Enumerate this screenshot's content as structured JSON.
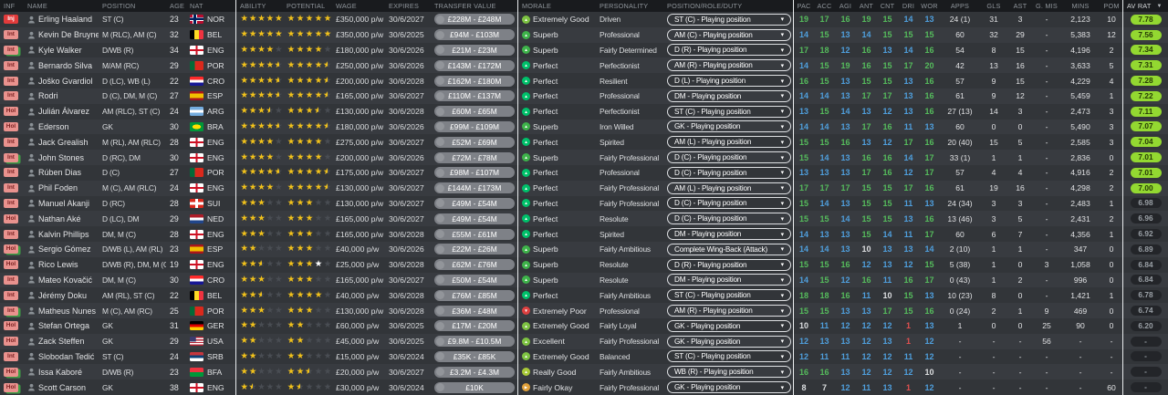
{
  "columns": [
    {
      "key": "inf",
      "label": "INF"
    },
    {
      "key": "name",
      "label": "NAME"
    },
    {
      "key": "position",
      "label": "POSITION"
    },
    {
      "key": "age",
      "label": "AGE"
    },
    {
      "key": "nat",
      "label": "NAT"
    },
    {
      "key": "ability",
      "label": "ABILITY"
    },
    {
      "key": "potential",
      "label": "POTENTIAL"
    },
    {
      "key": "wage",
      "label": "WAGE"
    },
    {
      "key": "expires",
      "label": "EXPIRES"
    },
    {
      "key": "value",
      "label": "TRANSFER VALUE"
    },
    {
      "key": "morale",
      "label": "MORALE"
    },
    {
      "key": "personality",
      "label": "PERSONALITY"
    },
    {
      "key": "role",
      "label": "POSITION/ROLE/DUTY"
    },
    {
      "key": "pac",
      "label": "PAC"
    },
    {
      "key": "acc",
      "label": "ACC"
    },
    {
      "key": "agi",
      "label": "AGI"
    },
    {
      "key": "ant",
      "label": "ANT"
    },
    {
      "key": "cnt",
      "label": "CNT"
    },
    {
      "key": "dri",
      "label": "DRI"
    },
    {
      "key": "wor",
      "label": "WOR"
    },
    {
      "key": "apps",
      "label": "APPS"
    },
    {
      "key": "gls",
      "label": "GLS"
    },
    {
      "key": "ast",
      "label": "AST"
    },
    {
      "key": "gmis",
      "label": "G. MIS"
    },
    {
      "key": "mins",
      "label": "MINS"
    },
    {
      "key": "pom",
      "label": "POM"
    },
    {
      "key": "avrat",
      "label": "AV RAT"
    }
  ],
  "sort": {
    "column": "AV RAT",
    "direction": "desc"
  },
  "colors": {
    "star_gold": "#f2c21b",
    "star_white": "#ffffff",
    "badge_injured": "#e23b3b",
    "badge_soft": "#e9928e",
    "badge_stack_green": "#3f9d46",
    "rating_good": "#93d831",
    "attr_green": "#55bb5c",
    "attr_blue": "#4f9fdd",
    "attr_white": "#dcdee0",
    "attr_red": "#e05050",
    "morale": {
      "Perfect": "#00c06a",
      "Superb": "#3eb24a",
      "Extremely Good": "#7dc242",
      "Excellent": "#7dc242",
      "Really Good": "#a8c838",
      "Fairly Okay": "#e0a03a",
      "Extremely Poor": "#dd4040"
    }
  },
  "players": [
    {
      "inf": "Inj",
      "inf_type": "inj",
      "inf_stacked": false,
      "name": "Erling Haaland",
      "position": "ST (C)",
      "age": "23",
      "nat": "NOR",
      "ability": 5,
      "potential": 5,
      "wage": "£350,000 p/w",
      "expires": "30/6/2027",
      "value": "£228M - £248M",
      "morale": "Extremely Good",
      "personality": "Driven",
      "role": "ST (C) - Playing position",
      "attrs": [
        19,
        17,
        16,
        19,
        15,
        14,
        13
      ],
      "apps": "24 (1)",
      "gls": "31",
      "ast": "3",
      "gmis": "-",
      "mins": "2,123",
      "pom": "10",
      "avrat": "7.78"
    },
    {
      "inf": "Int",
      "inf_type": "int",
      "inf_stacked": false,
      "name": "Kevin De Bruyne",
      "position": "M (RLC), AM (C)",
      "age": "32",
      "nat": "BEL",
      "ability": 5,
      "potential": 5,
      "wage": "£350,000 p/w",
      "expires": "30/6/2025",
      "value": "£94M - £103M",
      "morale": "Superb",
      "personality": "Professional",
      "role": "AM (C) - Playing position",
      "attrs": [
        14,
        15,
        13,
        14,
        15,
        15,
        15
      ],
      "apps": "60",
      "gls": "32",
      "ast": "29",
      "gmis": "-",
      "mins": "5,383",
      "pom": "12",
      "avrat": "7.56"
    },
    {
      "inf": "Int",
      "inf_type": "int",
      "inf_stacked": true,
      "name": "Kyle Walker",
      "position": "D/WB (R)",
      "age": "34",
      "nat": "ENG",
      "ability": 4,
      "potential": 4,
      "wage": "£180,000 p/w",
      "expires": "30/6/2026",
      "value": "£21M - £23M",
      "morale": "Superb",
      "personality": "Fairly Determined",
      "role": "D (R) - Playing position",
      "attrs": [
        17,
        18,
        12,
        16,
        13,
        14,
        16
      ],
      "apps": "54",
      "gls": "8",
      "ast": "15",
      "gmis": "-",
      "mins": "4,196",
      "pom": "2",
      "avrat": "7.34"
    },
    {
      "inf": "Int",
      "inf_type": "int",
      "inf_stacked": false,
      "name": "Bernardo Silva",
      "position": "M/AM (RC)",
      "age": "29",
      "nat": "POR",
      "ability": 4.5,
      "potential": 4.5,
      "wage": "£250,000 p/w",
      "expires": "30/6/2026",
      "value": "£143M - £172M",
      "morale": "Perfect",
      "personality": "Perfectionist",
      "role": "AM (R) - Playing position",
      "attrs": [
        14,
        15,
        19,
        16,
        15,
        17,
        20
      ],
      "apps": "42",
      "gls": "13",
      "ast": "16",
      "gmis": "-",
      "mins": "3,633",
      "pom": "5",
      "avrat": "7.31"
    },
    {
      "inf": "Int",
      "inf_type": "int",
      "inf_stacked": false,
      "name": "Joško Gvardiol",
      "position": "D (LC), WB (L)",
      "age": "22",
      "nat": "CRO",
      "ability": 4.5,
      "potential": 4.5,
      "wage": "£200,000 p/w",
      "expires": "30/6/2028",
      "value": "£162M - £180M",
      "morale": "Perfect",
      "personality": "Resilient",
      "role": "D (L) - Playing position",
      "attrs": [
        16,
        15,
        13,
        15,
        15,
        13,
        16
      ],
      "apps": "57",
      "gls": "9",
      "ast": "15",
      "gmis": "-",
      "mins": "4,229",
      "pom": "4",
      "avrat": "7.28"
    },
    {
      "inf": "Int",
      "inf_type": "int",
      "inf_stacked": false,
      "name": "Rodri",
      "position": "D (C), DM, M (C)",
      "age": "27",
      "nat": "ESP",
      "ability": 4.5,
      "potential": 4.5,
      "wage": "£165,000 p/w",
      "expires": "30/6/2027",
      "value": "£110M - £137M",
      "morale": "Perfect",
      "personality": "Professional",
      "role": "DM - Playing position",
      "attrs": [
        14,
        14,
        13,
        17,
        17,
        13,
        16
      ],
      "apps": "61",
      "gls": "9",
      "ast": "12",
      "gmis": "-",
      "mins": "5,459",
      "pom": "1",
      "avrat": "7.22"
    },
    {
      "inf": "Hol",
      "inf_type": "hol",
      "inf_stacked": false,
      "name": "Julián Álvarez",
      "position": "AM (RLC), ST (C)",
      "age": "24",
      "nat": "ARG",
      "ability": 3.5,
      "potential": 3.5,
      "wage": "£130,000 p/w",
      "expires": "30/6/2028",
      "value": "£60M - £65M",
      "morale": "Perfect",
      "personality": "Perfectionist",
      "role": "ST (C) - Playing position",
      "attrs": [
        13,
        15,
        14,
        13,
        12,
        13,
        16
      ],
      "apps": "27 (13)",
      "gls": "14",
      "ast": "3",
      "gmis": "-",
      "mins": "2,473",
      "pom": "3",
      "avrat": "7.11"
    },
    {
      "inf": "Hol",
      "inf_type": "hol",
      "inf_stacked": false,
      "name": "Ederson",
      "position": "GK",
      "age": "30",
      "nat": "BRA",
      "ability": 4.5,
      "potential": 4.5,
      "wage": "£180,000 p/w",
      "expires": "30/6/2026",
      "value": "£99M - £109M",
      "morale": "Superb",
      "personality": "Iron Willed",
      "role": "GK - Playing position",
      "attrs": [
        14,
        14,
        13,
        17,
        16,
        11,
        13
      ],
      "apps": "60",
      "gls": "0",
      "ast": "0",
      "gmis": "-",
      "mins": "5,490",
      "pom": "3",
      "avrat": "7.07"
    },
    {
      "inf": "Int",
      "inf_type": "int",
      "inf_stacked": false,
      "name": "Jack Grealish",
      "position": "M (RL), AM (RLC)",
      "age": "28",
      "nat": "ENG",
      "ability": 4,
      "potential": 4,
      "wage": "£275,000 p/w",
      "expires": "30/6/2027",
      "value": "£52M - £69M",
      "morale": "Perfect",
      "personality": "Spirited",
      "role": "AM (L) - Playing position",
      "attrs": [
        15,
        15,
        16,
        13,
        12,
        17,
        16
      ],
      "apps": "20 (40)",
      "gls": "15",
      "ast": "5",
      "gmis": "-",
      "mins": "2,585",
      "pom": "3",
      "avrat": "7.04"
    },
    {
      "inf": "Int",
      "inf_type": "int",
      "inf_stacked": true,
      "name": "John Stones",
      "position": "D (RC), DM",
      "age": "30",
      "nat": "ENG",
      "ability": 4,
      "potential": 4,
      "wage": "£200,000 p/w",
      "expires": "30/6/2026",
      "value": "£72M - £78M",
      "morale": "Superb",
      "personality": "Fairly Professional",
      "role": "D (C) - Playing position",
      "attrs": [
        15,
        14,
        13,
        16,
        16,
        14,
        17
      ],
      "apps": "33 (1)",
      "gls": "1",
      "ast": "1",
      "gmis": "-",
      "mins": "2,836",
      "pom": "0",
      "avrat": "7.01"
    },
    {
      "inf": "Int",
      "inf_type": "int",
      "inf_stacked": false,
      "name": "Rúben Dias",
      "position": "D (C)",
      "age": "27",
      "nat": "POR",
      "ability": 4.5,
      "potential": 4.5,
      "wage": "£175,000 p/w",
      "expires": "30/6/2027",
      "value": "£98M - £107M",
      "morale": "Perfect",
      "personality": "Professional",
      "role": "D (C) - Playing position",
      "attrs": [
        13,
        13,
        13,
        17,
        16,
        12,
        17
      ],
      "apps": "57",
      "gls": "4",
      "ast": "4",
      "gmis": "-",
      "mins": "4,916",
      "pom": "2",
      "avrat": "7.01"
    },
    {
      "inf": "Int",
      "inf_type": "int",
      "inf_stacked": false,
      "name": "Phil Foden",
      "position": "M (C), AM (RLC)",
      "age": "24",
      "nat": "ENG",
      "ability": 4,
      "potential": 4.5,
      "wage": "£130,000 p/w",
      "expires": "30/6/2027",
      "value": "£144M - £173M",
      "morale": "Perfect",
      "personality": "Fairly Professional",
      "role": "AM (L) - Playing position",
      "attrs": [
        17,
        17,
        17,
        15,
        15,
        17,
        16
      ],
      "apps": "61",
      "gls": "19",
      "ast": "16",
      "gmis": "-",
      "mins": "4,298",
      "pom": "2",
      "avrat": "7.00"
    },
    {
      "inf": "Int",
      "inf_type": "int",
      "inf_stacked": false,
      "name": "Manuel Akanji",
      "position": "D (RC)",
      "age": "28",
      "nat": "SUI",
      "ability": 3,
      "potential": 3,
      "wage": "£130,000 p/w",
      "expires": "30/6/2027",
      "value": "£49M - £54M",
      "morale": "Perfect",
      "personality": "Fairly Professional",
      "role": "D (C) - Playing position",
      "attrs": [
        15,
        14,
        13,
        15,
        15,
        11,
        13
      ],
      "apps": "24 (34)",
      "gls": "3",
      "ast": "3",
      "gmis": "-",
      "mins": "2,483",
      "pom": "1",
      "avrat": "6.98"
    },
    {
      "inf": "Hol",
      "inf_type": "hol",
      "inf_stacked": false,
      "name": "Nathan Aké",
      "position": "D (LC), DM",
      "age": "29",
      "nat": "NED",
      "ability": 3,
      "potential": 3,
      "wage": "£165,000 p/w",
      "expires": "30/6/2027",
      "value": "£49M - £54M",
      "morale": "Perfect",
      "personality": "Resolute",
      "role": "D (C) - Playing position",
      "attrs": [
        15,
        15,
        14,
        15,
        15,
        13,
        16
      ],
      "apps": "13 (46)",
      "gls": "3",
      "ast": "5",
      "gmis": "-",
      "mins": "2,431",
      "pom": "2",
      "avrat": "6.96"
    },
    {
      "inf": "Int",
      "inf_type": "int",
      "inf_stacked": false,
      "name": "Kalvin Phillips",
      "position": "DM, M (C)",
      "age": "28",
      "nat": "ENG",
      "ability": 3,
      "potential": 3,
      "wage": "£165,000 p/w",
      "expires": "30/6/2028",
      "value": "£55M - £61M",
      "morale": "Perfect",
      "personality": "Spirited",
      "role": "DM - Playing position",
      "attrs": [
        14,
        13,
        13,
        15,
        14,
        11,
        17
      ],
      "apps": "60",
      "gls": "6",
      "ast": "7",
      "gmis": "-",
      "mins": "4,356",
      "pom": "1",
      "avrat": "6.92"
    },
    {
      "inf": "Hol",
      "inf_type": "hol",
      "inf_stacked": true,
      "name": "Sergio Gómez",
      "position": "D/WB (L), AM (RL)",
      "age": "23",
      "nat": "ESP",
      "ability": 2,
      "potential": 3,
      "wage": "£40,000 p/w",
      "expires": "30/6/2026",
      "value": "£22M - £26M",
      "morale": "Superb",
      "personality": "Fairly Ambitious",
      "role": "Complete Wing-Back (Attack)",
      "attrs": [
        14,
        14,
        13,
        10,
        13,
        13,
        14
      ],
      "apps": "2 (10)",
      "gls": "1",
      "ast": "1",
      "gmis": "-",
      "mins": "347",
      "pom": "0",
      "avrat": "6.89"
    },
    {
      "inf": "Hol",
      "inf_type": "hol",
      "inf_stacked": false,
      "name": "Rico Lewis",
      "position": "D/WB (R), DM, M (C)",
      "age": "19",
      "nat": "ENG",
      "ability": 2.5,
      "potential": 4,
      "potential_white": true,
      "wage": "£25,000 p/w",
      "expires": "30/6/2028",
      "value": "£62M - £76M",
      "morale": "Superb",
      "personality": "Resolute",
      "role": "D (R) - Playing position",
      "attrs": [
        15,
        15,
        16,
        12,
        13,
        12,
        15
      ],
      "apps": "5 (38)",
      "gls": "1",
      "ast": "0",
      "gmis": "3",
      "mins": "1,058",
      "pom": "0",
      "avrat": "6.84"
    },
    {
      "inf": "Int",
      "inf_type": "int",
      "inf_stacked": false,
      "name": "Mateo Kovačić",
      "position": "DM, M (C)",
      "age": "30",
      "nat": "CRO",
      "ability": 3,
      "potential": 3,
      "wage": "£165,000 p/w",
      "expires": "30/6/2027",
      "value": "£50M - £54M",
      "morale": "Superb",
      "personality": "Resolute",
      "role": "DM - Playing position",
      "attrs": [
        14,
        15,
        12,
        16,
        11,
        16,
        17
      ],
      "apps": "0 (43)",
      "gls": "1",
      "ast": "2",
      "gmis": "-",
      "mins": "996",
      "pom": "0",
      "avrat": "6.84"
    },
    {
      "inf": "Int",
      "inf_type": "int",
      "inf_stacked": false,
      "name": "Jérémy Doku",
      "position": "AM (RL), ST (C)",
      "age": "22",
      "nat": "BEL",
      "ability": 2.5,
      "potential": 4,
      "wage": "£40,000 p/w",
      "expires": "30/6/2028",
      "value": "£76M - £85M",
      "morale": "Perfect",
      "personality": "Fairly Ambitious",
      "role": "ST (C) - Playing position",
      "attrs": [
        18,
        18,
        16,
        11,
        10,
        15,
        13
      ],
      "apps": "10 (23)",
      "gls": "8",
      "ast": "0",
      "gmis": "-",
      "mins": "1,421",
      "pom": "1",
      "avrat": "6.78"
    },
    {
      "inf": "Int",
      "inf_type": "int",
      "inf_stacked": true,
      "name": "Matheus Nunes",
      "position": "M (C), AM (RC)",
      "age": "25",
      "nat": "POR",
      "ability": 3,
      "potential": 3,
      "wage": "£130,000 p/w",
      "expires": "30/6/2028",
      "value": "£36M - £48M",
      "morale": "Extremely Poor",
      "personality": "Professional",
      "role": "AM (R) - Playing position",
      "attrs": [
        15,
        15,
        13,
        13,
        17,
        15,
        16
      ],
      "apps": "0 (24)",
      "gls": "2",
      "ast": "1",
      "gmis": "9",
      "mins": "469",
      "pom": "0",
      "avrat": "6.74"
    },
    {
      "inf": "Hol",
      "inf_type": "hol",
      "inf_stacked": false,
      "name": "Stefan Ortega",
      "position": "GK",
      "age": "31",
      "nat": "GER",
      "ability": 2,
      "potential": 2,
      "wage": "£60,000 p/w",
      "expires": "30/6/2025",
      "value": "£17M - £20M",
      "morale": "Extremely Good",
      "personality": "Fairly Loyal",
      "role": "GK - Playing position",
      "attrs": [
        10,
        11,
        12,
        12,
        12,
        1,
        13
      ],
      "apps": "1",
      "gls": "0",
      "ast": "0",
      "gmis": "25",
      "mins": "90",
      "pom": "0",
      "avrat": "6.20"
    },
    {
      "inf": "Hol",
      "inf_type": "hol",
      "inf_stacked": false,
      "name": "Zack Steffen",
      "position": "GK",
      "age": "29",
      "nat": "USA",
      "ability": 2,
      "potential": 2,
      "wage": "£45,000 p/w",
      "expires": "30/6/2025",
      "value": "£9.8M - £10.5M",
      "morale": "Excellent",
      "personality": "Fairly Professional",
      "role": "GK - Playing position",
      "attrs": [
        12,
        13,
        13,
        12,
        13,
        1,
        12
      ],
      "apps": "-",
      "gls": "-",
      "ast": "-",
      "gmis": "56",
      "mins": "-",
      "pom": "-",
      "avrat": "-"
    },
    {
      "inf": "Int",
      "inf_type": "int",
      "inf_stacked": false,
      "name": "Slobodan Tedić",
      "position": "ST (C)",
      "age": "24",
      "nat": "SRB",
      "ability": 2,
      "potential": 2,
      "wage": "£15,000 p/w",
      "expires": "30/6/2024",
      "value": "£35K - £85K",
      "morale": "Extremely Good",
      "personality": "Balanced",
      "role": "ST (C) - Playing position",
      "attrs": [
        12,
        11,
        11,
        12,
        12,
        11,
        12
      ],
      "apps": "-",
      "gls": "-",
      "ast": "-",
      "gmis": "-",
      "mins": "-",
      "pom": "-",
      "avrat": "-"
    },
    {
      "inf": "Hol",
      "inf_type": "hol",
      "inf_stacked": true,
      "name": "Issa Kaboré",
      "position": "D/WB (R)",
      "age": "23",
      "nat": "BFA",
      "ability": 2,
      "potential": 2.5,
      "wage": "£20,000 p/w",
      "expires": "30/6/2027",
      "value": "£3.2M - £4.3M",
      "morale": "Really Good",
      "personality": "Fairly Ambitious",
      "role": "WB (R) - Playing position",
      "attrs": [
        16,
        16,
        13,
        12,
        12,
        12,
        10
      ],
      "apps": "-",
      "gls": "-",
      "ast": "-",
      "gmis": "-",
      "mins": "-",
      "pom": "-",
      "avrat": "-"
    },
    {
      "inf": "Hol",
      "inf_type": "hol",
      "inf_stacked": true,
      "name": "Scott Carson",
      "position": "GK",
      "age": "38",
      "nat": "ENG",
      "ability": 1.5,
      "potential": 1.5,
      "wage": "£30,000 p/w",
      "expires": "30/6/2024",
      "value": "£10K",
      "morale": "Fairly Okay",
      "personality": "Fairly Professional",
      "role": "GK - Playing position",
      "attrs": [
        8,
        7,
        12,
        11,
        13,
        1,
        12
      ],
      "apps": "-",
      "gls": "-",
      "ast": "-",
      "gmis": "-",
      "mins": "-",
      "pom": "60",
      "avrat": "-"
    }
  ]
}
